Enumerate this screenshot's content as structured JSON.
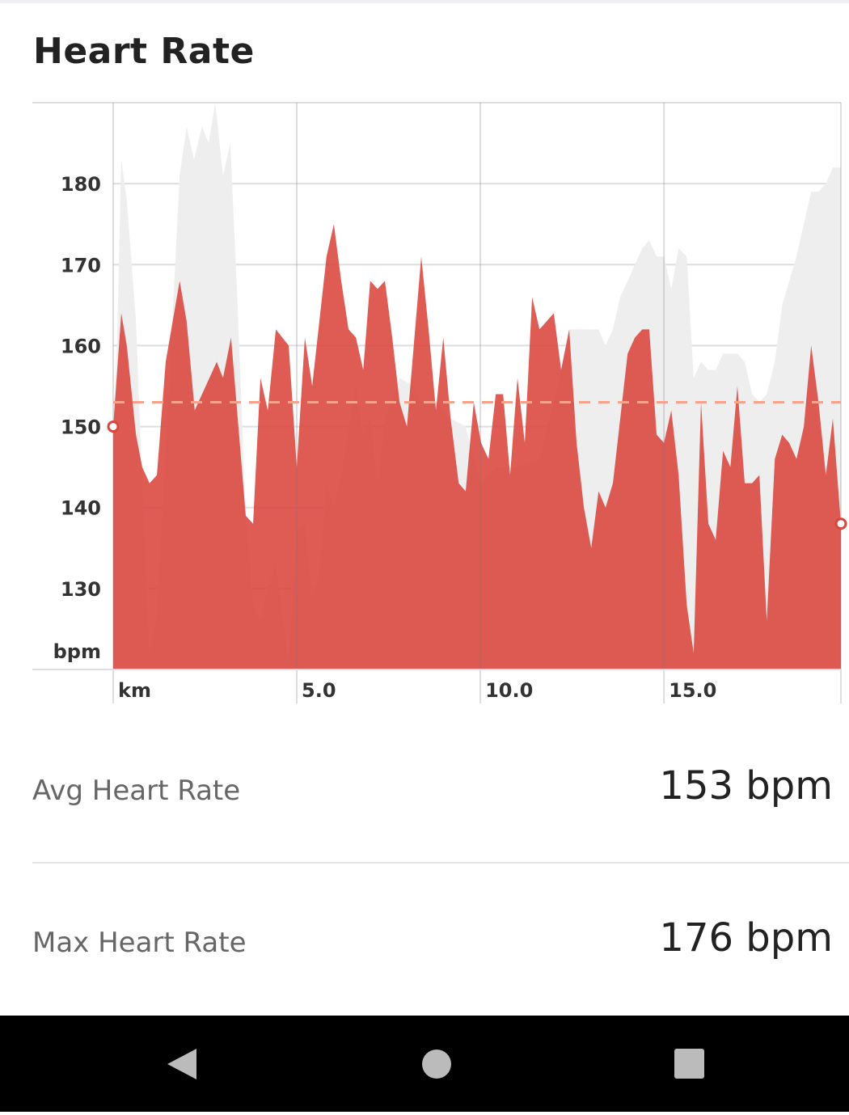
{
  "header": {
    "title": "Heart Rate"
  },
  "chart_data": {
    "type": "area",
    "title": "Heart Rate",
    "ylabel": "bpm",
    "xlabel": "km",
    "ylim": [
      120,
      190
    ],
    "xlim": [
      0,
      19.82
    ],
    "yticks": [
      "130",
      "140",
      "150",
      "160",
      "170",
      "180"
    ],
    "ytick_values": [
      130,
      140,
      150,
      160,
      170,
      180
    ],
    "xticks": [
      "5.0",
      "10.0",
      "15.0"
    ],
    "xtick_values": [
      5,
      10,
      15
    ],
    "grid": true,
    "average_line": 153,
    "colors": {
      "heart_rate": "#d9463c",
      "elevation": "#eeeeee",
      "average": "#f7a08a",
      "grid": "#dedee2"
    },
    "series": [
      {
        "name": "heart_rate",
        "x": [
          0,
          0.22,
          0.37,
          0.62,
          0.79,
          0.99,
          1.19,
          1.43,
          1.81,
          2.0,
          2.22,
          2.82,
          2.99,
          3.21,
          3.61,
          3.81,
          4.01,
          4.21,
          4.43,
          4.78,
          5.0,
          5.22,
          5.42,
          5.81,
          6.01,
          6.21,
          6.41,
          6.61,
          6.81,
          7.0,
          7.2,
          7.4,
          7.6,
          7.8,
          8.0,
          8.39,
          8.59,
          8.79,
          8.99,
          9.19,
          9.41,
          9.6,
          9.82,
          10.02,
          10.22,
          10.42,
          10.62,
          10.81,
          11.01,
          11.21,
          11.41,
          11.61,
          12.0,
          12.2,
          12.42,
          12.62,
          12.82,
          13.02,
          13.22,
          13.41,
          13.61,
          14.01,
          14.21,
          14.41,
          14.6,
          14.8,
          15.0,
          15.2,
          15.4,
          15.62,
          15.81,
          16.01,
          16.21,
          16.41,
          16.61,
          16.81,
          17.0,
          17.2,
          17.4,
          17.6,
          17.8,
          18.02,
          18.22,
          18.41,
          18.61,
          18.81,
          19.01,
          19.21,
          19.41,
          19.6,
          19.82
        ],
        "values": [
          150,
          164,
          160,
          149,
          145,
          143,
          144,
          158,
          168,
          163,
          152,
          158,
          156,
          161,
          139,
          138,
          156,
          152,
          162,
          160,
          145,
          161,
          155,
          171,
          175,
          168,
          162,
          161,
          157,
          168,
          167,
          168,
          161,
          153,
          150,
          171,
          162,
          152,
          161,
          151,
          143,
          142,
          153,
          148,
          146,
          154,
          154,
          144,
          156,
          148,
          166,
          162,
          164,
          157,
          162,
          148,
          140,
          135,
          142,
          140,
          143,
          159,
          161,
          162,
          162,
          149,
          148,
          152,
          144,
          128,
          122,
          153,
          138,
          136,
          147,
          145,
          155,
          143,
          143,
          144,
          126,
          146,
          149,
          148,
          146,
          150,
          160,
          153,
          144,
          151,
          138
        ]
      },
      {
        "name": "elevation",
        "x": [
          0,
          0.11,
          0.22,
          0.37,
          0.62,
          0.79,
          0.99,
          1.19,
          1.43,
          1.81,
          2.0,
          2.2,
          2.42,
          2.6,
          2.78,
          2.99,
          3.19,
          3.37,
          3.61,
          3.81,
          4.01,
          4.21,
          4.43,
          4.78,
          5.0,
          5.22,
          5.42,
          5.62,
          5.81,
          6.01,
          6.21,
          6.61,
          6.81,
          7.0,
          7.2,
          7.4,
          7.8,
          8.19,
          8.39,
          8.79,
          9.19,
          9.6,
          10.02,
          10.42,
          11.01,
          11.61,
          12.0,
          12.42,
          13.22,
          13.41,
          13.61,
          13.81,
          14.01,
          14.41,
          14.6,
          14.8,
          15.0,
          15.2,
          15.4,
          15.62,
          15.81,
          16.01,
          16.21,
          16.41,
          16.61,
          16.81,
          17.0,
          17.2,
          17.4,
          17.6,
          17.8,
          18.02,
          18.22,
          18.61,
          19.01,
          19.21,
          19.41,
          19.6,
          19.82
        ],
        "values": [
          150,
          161,
          183,
          178,
          163,
          143,
          122,
          127,
          147,
          181,
          187,
          183,
          187,
          185,
          190,
          181,
          185,
          167,
          139,
          128,
          126,
          130,
          133,
          121,
          137,
          138,
          129,
          132,
          143,
          140,
          144,
          155,
          149,
          151,
          143,
          151,
          156,
          155,
          153,
          153,
          151,
          150,
          143,
          145,
          145,
          146,
          153,
          162,
          162,
          160,
          162,
          166,
          168,
          172,
          173,
          171,
          171,
          167,
          172,
          171,
          156,
          158,
          157,
          157,
          159,
          159,
          159,
          158,
          154,
          153,
          154,
          158,
          165,
          171,
          179,
          179,
          180,
          182,
          182
        ]
      }
    ]
  },
  "stats": [
    {
      "label": "Avg Heart Rate",
      "value": "153 bpm"
    },
    {
      "label": "Max Heart Rate",
      "value": "176 bpm"
    }
  ],
  "navbar": {
    "back": "back-icon",
    "home": "home-icon",
    "recents": "recents-icon"
  }
}
